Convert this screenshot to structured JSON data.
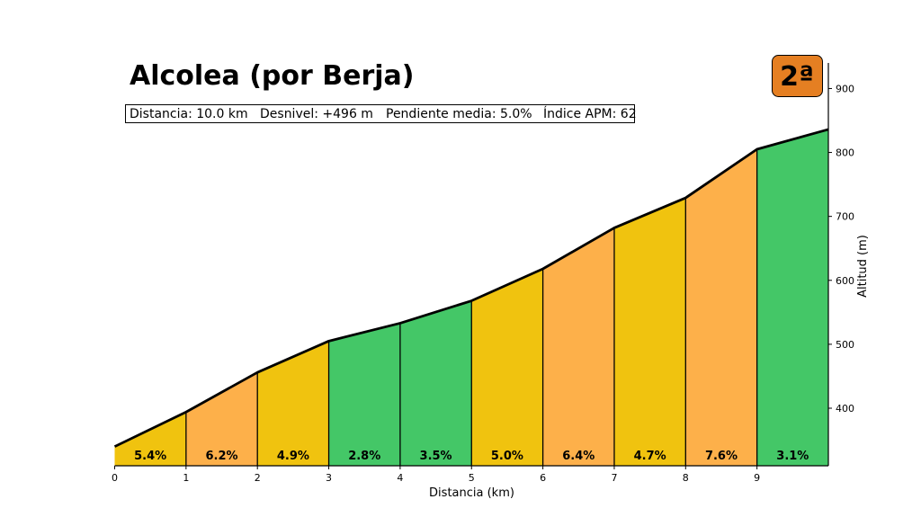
{
  "header": {
    "title": "Alcolea (por Berja)",
    "stats": [
      "Distancia: 10.0 km",
      "Desnivel: +496 m",
      "Pendiente media: 5.0%",
      "Índice APM: 62"
    ],
    "category_badge": "2ª"
  },
  "colors": {
    "easy": "#44c767",
    "medium": "#f0c30f",
    "hard": "#fdb04a",
    "badge": "#e57f22",
    "outline": "#000000"
  },
  "chart_data": {
    "type": "area",
    "title": "Alcolea (por Berja)",
    "xlabel": "Distancia (km)",
    "ylabel": "Altitud (m)",
    "xlim": [
      0,
      10
    ],
    "ylim": [
      310,
      940
    ],
    "x_ticks": [
      0,
      1,
      2,
      3,
      4,
      5,
      6,
      7,
      8,
      9
    ],
    "y_ticks": [
      400,
      500,
      600,
      700,
      800,
      900
    ],
    "grid": false,
    "y_axis_position": "right",
    "profile": {
      "x": [
        0,
        1,
        2,
        3,
        4,
        5,
        6,
        7,
        8,
        9,
        10
      ],
      "y": [
        340,
        394,
        456,
        505,
        533,
        568,
        618,
        682,
        729,
        805,
        836
      ]
    },
    "segments": [
      {
        "label": "5.4%",
        "color": "medium"
      },
      {
        "label": "6.2%",
        "color": "hard"
      },
      {
        "label": "4.9%",
        "color": "medium"
      },
      {
        "label": "2.8%",
        "color": "easy"
      },
      {
        "label": "3.5%",
        "color": "easy"
      },
      {
        "label": "5.0%",
        "color": "medium"
      },
      {
        "label": "6.4%",
        "color": "hard"
      },
      {
        "label": "4.7%",
        "color": "medium"
      },
      {
        "label": "7.6%",
        "color": "hard"
      },
      {
        "label": "3.1%",
        "color": "easy"
      }
    ]
  }
}
